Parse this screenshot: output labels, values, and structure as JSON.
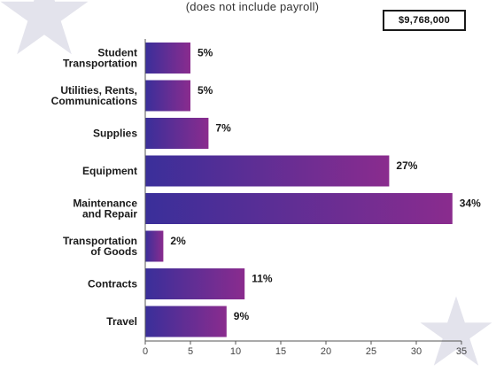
{
  "header": {
    "subtitle": "(does not include payroll)",
    "total": "$9,768,000"
  },
  "chart_data": {
    "type": "bar",
    "orientation": "horizontal",
    "categories": [
      [
        "Student",
        "Transportation"
      ],
      [
        "Utilities, Rents,",
        "Communications"
      ],
      [
        "Supplies"
      ],
      [
        "Equipment"
      ],
      [
        "Maintenance",
        "and Repair"
      ],
      [
        "Transportation",
        "of Goods"
      ],
      [
        "Contracts"
      ],
      [
        "Travel"
      ]
    ],
    "values": [
      5,
      5,
      7,
      27,
      34,
      2,
      11,
      9
    ],
    "value_labels": [
      "5%",
      "5%",
      "7%",
      "27%",
      "34%",
      "2%",
      "11%",
      "9%"
    ],
    "xlim": [
      0,
      35
    ],
    "xticks": [
      "0",
      "5",
      "10",
      "15",
      "20",
      "25",
      "30",
      "35"
    ],
    "grid": false,
    "colors": {
      "bar_start": "#3a2f9a",
      "bar_end": "#8a2c8e"
    }
  }
}
